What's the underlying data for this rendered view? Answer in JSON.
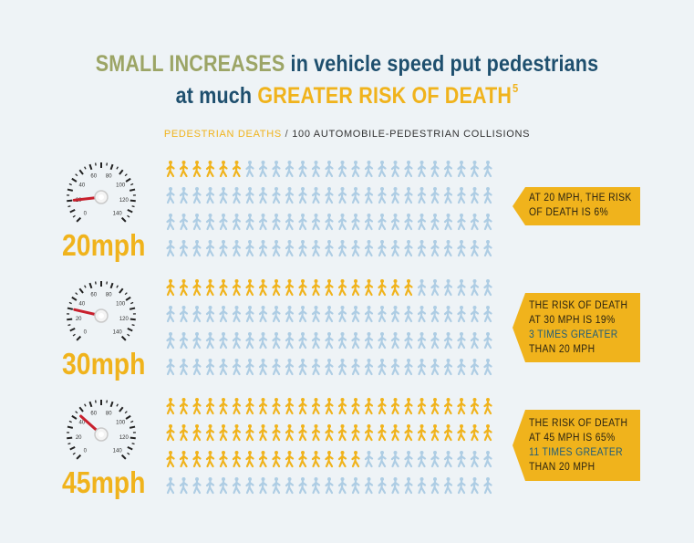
{
  "title": {
    "line1_part1": "SMALL INCREASES",
    "line1_part2": " in vehicle speed put pedestrians",
    "line2_part1": "at much ",
    "line2_part2": "GREATER RISK OF DEATH",
    "line2_sup": "5"
  },
  "subtitle": {
    "deaths": "PEDESTRIAN DEATHS",
    "separator": " / ",
    "rest": "100 AUTOMOBILE-PEDESTRIAN COLLISIONS"
  },
  "colors": {
    "death": "#f0b31c",
    "survive": "#aecde4",
    "olive": "#9ca566",
    "navy": "#1e4f6e",
    "needle": "#c8202d",
    "background": "#eef3f6"
  },
  "gauge_ticks": [
    "0",
    "20",
    "40",
    "60",
    "80",
    "100",
    "120",
    "140"
  ],
  "rows": [
    {
      "speed": "20mph",
      "deaths": 6,
      "total": 100,
      "callout": [
        "AT 20 MPH, THE RISK",
        "OF DEATH IS 6%"
      ],
      "callout_highlight": []
    },
    {
      "speed": "30mph",
      "deaths": 19,
      "total": 100,
      "callout": [
        "THE RISK OF DEATH",
        "AT 30 MPH IS 19%"
      ],
      "callout_highlight": [
        "3 TIMES GREATER"
      ],
      "callout_tail": [
        "THAN 20 MPH"
      ]
    },
    {
      "speed": "45mph",
      "deaths": 65,
      "total": 100,
      "callout": [
        "THE RISK OF DEATH",
        "AT 45 MPH IS 65%"
      ],
      "callout_highlight": [
        "11 TIMES GREATER"
      ],
      "callout_tail": [
        "THAN 20 MPH"
      ]
    }
  ]
}
